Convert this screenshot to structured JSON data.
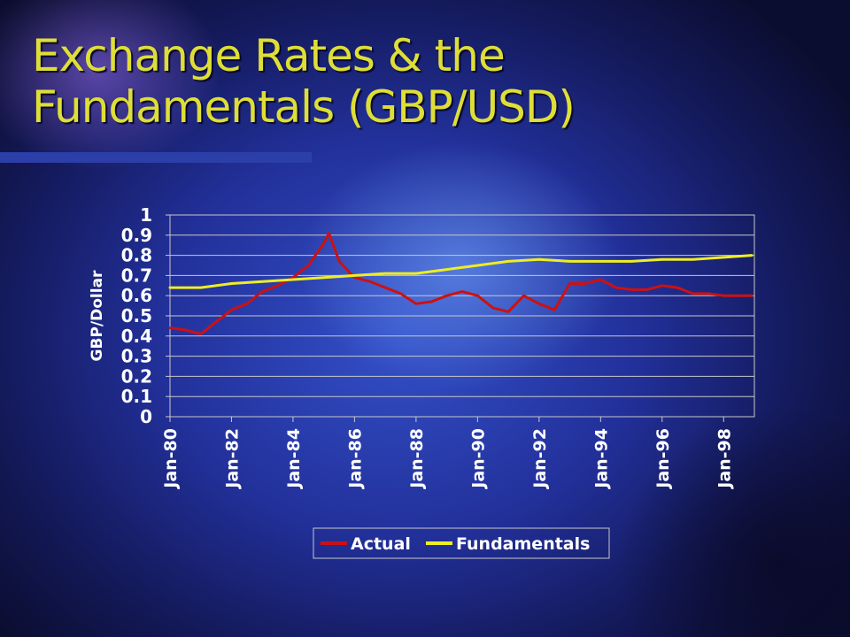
{
  "slide": {
    "title": "Exchange Rates & the\nFundamentals (GBP/USD)"
  },
  "chart_data": {
    "type": "line",
    "ylabel": "GBP/Dollar",
    "xlabel": "",
    "ylim": [
      0,
      1
    ],
    "yticks": [
      "0",
      "0.1",
      "0.2",
      "0.3",
      "0.4",
      "0.5",
      "0.6",
      "0.7",
      "0.8",
      "0.9",
      "1"
    ],
    "xticks": [
      "Jan-80",
      "Jan-82",
      "Jan-84",
      "Jan-86",
      "Jan-88",
      "Jan-90",
      "Jan-92",
      "Jan-94",
      "Jan-96",
      "Jan-98"
    ],
    "xrange": [
      "Jan-80",
      "Dec-98"
    ],
    "grid": true,
    "legend_position": "bottom",
    "series": [
      {
        "name": "Actual",
        "color": "#cc1111",
        "points": [
          [
            "Jan-80",
            0.44
          ],
          [
            "Jul-80",
            0.43
          ],
          [
            "Jan-81",
            0.41
          ],
          [
            "Jul-81",
            0.47
          ],
          [
            "Jan-82",
            0.53
          ],
          [
            "Jul-82",
            0.56
          ],
          [
            "Jan-83",
            0.62
          ],
          [
            "Jul-83",
            0.65
          ],
          [
            "Jan-84",
            0.69
          ],
          [
            "Jul-84",
            0.75
          ],
          [
            "Jan-85",
            0.86
          ],
          [
            "Mar-85",
            0.91
          ],
          [
            "Jul-85",
            0.77
          ],
          [
            "Jan-86",
            0.69
          ],
          [
            "Jul-86",
            0.67
          ],
          [
            "Jan-87",
            0.64
          ],
          [
            "Jul-87",
            0.61
          ],
          [
            "Jan-88",
            0.56
          ],
          [
            "Jul-88",
            0.57
          ],
          [
            "Jan-89",
            0.6
          ],
          [
            "Jul-89",
            0.62
          ],
          [
            "Jan-90",
            0.6
          ],
          [
            "Jul-90",
            0.54
          ],
          [
            "Jan-91",
            0.52
          ],
          [
            "Jul-91",
            0.6
          ],
          [
            "Jan-92",
            0.56
          ],
          [
            "Jul-92",
            0.53
          ],
          [
            "Jan-93",
            0.66
          ],
          [
            "Jul-93",
            0.66
          ],
          [
            "Jan-94",
            0.68
          ],
          [
            "Jul-94",
            0.64
          ],
          [
            "Jan-95",
            0.63
          ],
          [
            "Jul-95",
            0.63
          ],
          [
            "Jan-96",
            0.65
          ],
          [
            "Jul-96",
            0.64
          ],
          [
            "Jan-97",
            0.61
          ],
          [
            "Jul-97",
            0.61
          ],
          [
            "Jan-98",
            0.6
          ],
          [
            "Jul-98",
            0.6
          ],
          [
            "Dec-98",
            0.6
          ]
        ]
      },
      {
        "name": "Fundamentals",
        "color": "#eeee22",
        "points": [
          [
            "Jan-80",
            0.64
          ],
          [
            "Jan-81",
            0.64
          ],
          [
            "Jan-82",
            0.66
          ],
          [
            "Jan-83",
            0.67
          ],
          [
            "Jan-84",
            0.68
          ],
          [
            "Jan-85",
            0.69
          ],
          [
            "Jan-86",
            0.7
          ],
          [
            "Jan-87",
            0.71
          ],
          [
            "Jan-88",
            0.71
          ],
          [
            "Jan-89",
            0.73
          ],
          [
            "Jan-90",
            0.75
          ],
          [
            "Jan-91",
            0.77
          ],
          [
            "Jan-92",
            0.78
          ],
          [
            "Jan-93",
            0.77
          ],
          [
            "Jan-94",
            0.77
          ],
          [
            "Jan-95",
            0.77
          ],
          [
            "Jan-96",
            0.78
          ],
          [
            "Jan-97",
            0.78
          ],
          [
            "Jan-98",
            0.79
          ],
          [
            "Dec-98",
            0.8
          ]
        ]
      }
    ]
  }
}
